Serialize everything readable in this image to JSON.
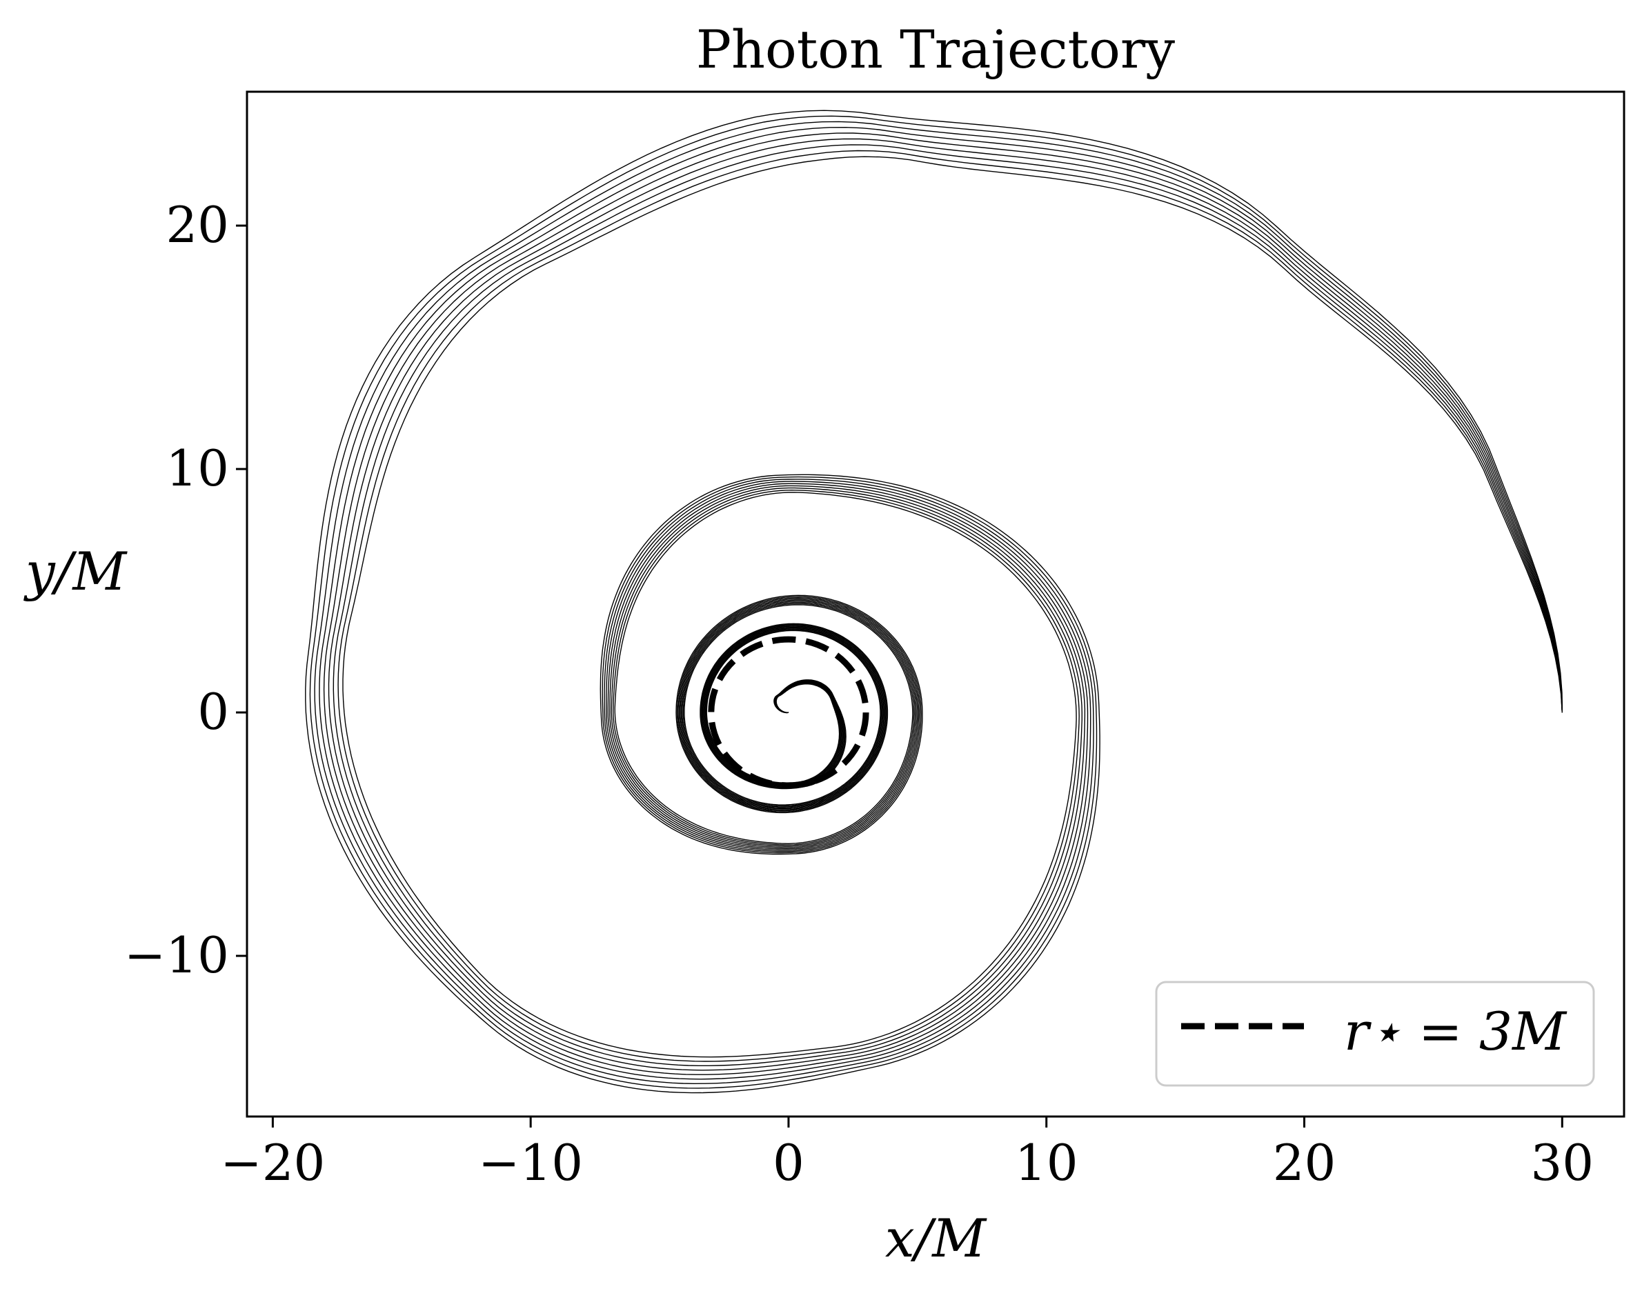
{
  "chart_data": {
    "type": "line",
    "title": "Photon Trajectory",
    "xlabel": "x/M",
    "ylabel": "y/M",
    "xlim": [
      -21,
      32.4
    ],
    "ylim": [
      -16.6,
      25.5
    ],
    "xticks": [
      -20,
      -10,
      0,
      10,
      20,
      30
    ],
    "yticks": [
      -10,
      0,
      10,
      20
    ],
    "xtick_labels": [
      "−20",
      "−10",
      "0",
      "10",
      "20",
      "30"
    ],
    "ytick_labels": [
      "−10",
      "0",
      "10",
      "20"
    ],
    "grid": false,
    "legend_position": "bottom-right",
    "legend": [
      {
        "label": "r⋆ = 3M",
        "style": "dashed",
        "color": "#000000"
      }
    ],
    "photon_sphere": {
      "radius": 3
    },
    "trajectories": {
      "count": 9,
      "start": [
        30,
        0
      ],
      "color": "#000000",
      "rotation_sense": "counter-clockwise",
      "inspiral_waypoints": [
        {
          "angle_deg": 0,
          "radius": 30
        },
        {
          "angle_deg": 20,
          "radius": 29
        },
        {
          "angle_deg": 45,
          "radius": 27
        },
        {
          "angle_deg": 80,
          "radius": 24
        },
        {
          "angle_deg": 120,
          "radius": 21.5
        },
        {
          "angle_deg": 170,
          "radius": 18.1
        },
        {
          "angle_deg": 225,
          "radius": 16.7
        },
        {
          "angle_deg": 280,
          "radius": 14.4
        },
        {
          "angle_deg": 360,
          "radius": 11.6
        },
        {
          "angle_deg": 450,
          "radius": 9.4
        },
        {
          "angle_deg": 540,
          "radius": 7.0
        },
        {
          "angle_deg": 630,
          "radius": 5.6
        },
        {
          "angle_deg": 720,
          "radius": 5.0
        },
        {
          "angle_deg": 900,
          "radius": 4.2
        },
        {
          "angle_deg": 1080,
          "radius": 3.7
        },
        {
          "angle_deg": 1260,
          "radius": 3.3
        },
        {
          "angle_deg": 1360,
          "radius": 3.0
        },
        {
          "angle_deg": 1460,
          "radius": 1.8
        },
        {
          "angle_deg": 1560,
          "radius": 0.8
        },
        {
          "angle_deg": 1640,
          "radius": 0
        }
      ]
    }
  }
}
